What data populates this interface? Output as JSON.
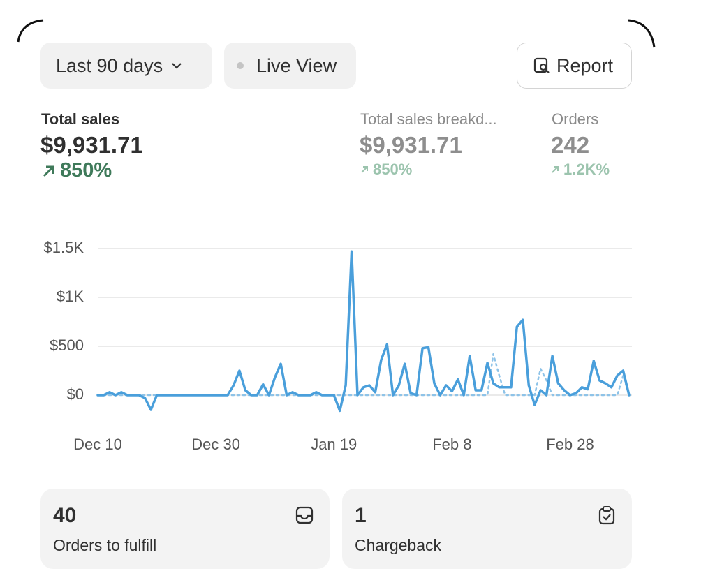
{
  "controls": {
    "date_range": "Last 90 days",
    "live_view": "Live View",
    "report": "Report"
  },
  "metrics": [
    {
      "label": "Total sales",
      "value": "$9,931.71",
      "change": "850%"
    },
    {
      "label": "Total sales breakd...",
      "value": "$9,931.71",
      "change": "850%"
    },
    {
      "label": "Orders",
      "value": "242",
      "change": "1.2K%"
    }
  ],
  "chart_data": {
    "type": "line",
    "categories": [
      "Dec 10",
      null,
      null,
      null,
      null,
      null,
      null,
      null,
      null,
      null,
      null,
      null,
      null,
      null,
      null,
      null,
      null,
      null,
      null,
      null,
      "Dec 30",
      null,
      null,
      null,
      null,
      null,
      null,
      null,
      null,
      null,
      null,
      null,
      null,
      null,
      null,
      null,
      null,
      null,
      null,
      null,
      "Jan 19",
      null,
      null,
      null,
      null,
      null,
      null,
      null,
      null,
      null,
      null,
      null,
      null,
      null,
      null,
      null,
      null,
      null,
      null,
      null,
      "Feb 8",
      null,
      null,
      null,
      null,
      null,
      null,
      null,
      null,
      null,
      null,
      null,
      null,
      null,
      null,
      null,
      null,
      null,
      null,
      null,
      "Feb 28",
      null,
      null,
      null,
      null,
      null,
      null,
      null,
      null,
      null,
      null
    ],
    "series": [
      {
        "color": "#4a9fdb",
        "values": [
          0,
          0,
          30,
          0,
          30,
          0,
          0,
          0,
          -30,
          -150,
          0,
          0,
          0,
          0,
          0,
          0,
          0,
          0,
          0,
          0,
          0,
          0,
          0,
          100,
          250,
          50,
          0,
          0,
          110,
          0,
          180,
          320,
          0,
          30,
          0,
          0,
          0,
          30,
          0,
          0,
          0,
          -160,
          100,
          1470,
          0,
          80,
          100,
          30,
          360,
          520,
          0,
          100,
          320,
          20,
          0,
          480,
          490,
          120,
          0,
          100,
          40,
          160,
          0,
          400,
          50,
          50,
          330,
          120,
          80,
          80,
          80,
          700,
          770,
          100,
          -100,
          50,
          0,
          400,
          120,
          50,
          0,
          20,
          80,
          60,
          350,
          150,
          120,
          80,
          200,
          250,
          0
        ]
      },
      {
        "color": "#8ec3e8",
        "dash": true,
        "values": [
          0,
          0,
          0,
          0,
          0,
          0,
          0,
          0,
          0,
          0,
          0,
          0,
          0,
          0,
          0,
          0,
          0,
          0,
          0,
          0,
          0,
          0,
          0,
          0,
          0,
          0,
          0,
          0,
          0,
          0,
          0,
          0,
          0,
          0,
          0,
          0,
          0,
          0,
          0,
          0,
          0,
          0,
          0,
          0,
          0,
          0,
          0,
          0,
          0,
          0,
          0,
          0,
          0,
          0,
          0,
          0,
          0,
          0,
          0,
          0,
          0,
          0,
          0,
          0,
          0,
          0,
          0,
          420,
          200,
          0,
          0,
          0,
          0,
          0,
          0,
          270,
          150,
          0,
          0,
          0,
          0,
          0,
          0,
          0,
          0,
          0,
          0,
          0,
          0,
          200,
          0
        ]
      }
    ],
    "ylim": [
      -200,
      1550
    ],
    "yticks": [
      {
        "value": 0,
        "label": "$0"
      },
      {
        "value": 500,
        "label": "$500"
      },
      {
        "value": 1000,
        "label": "$1K"
      },
      {
        "value": 1500,
        "label": "$1.5K"
      }
    ],
    "grid": true
  },
  "cards": [
    {
      "value": "40",
      "label": "Orders to fulfill"
    },
    {
      "value": "1",
      "label": "Chargeback"
    }
  ]
}
